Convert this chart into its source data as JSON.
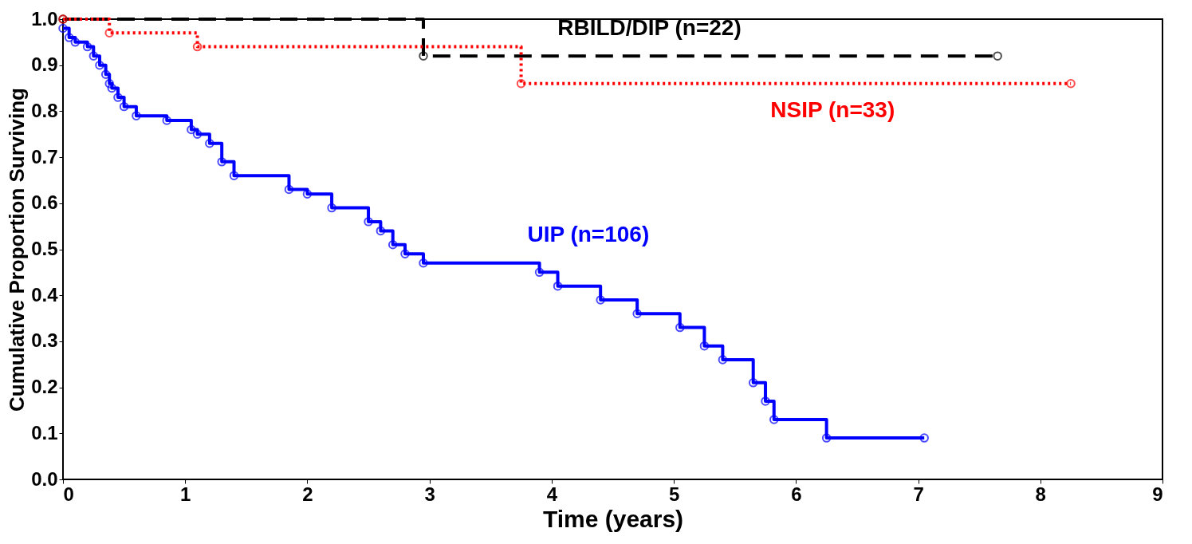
{
  "chart_data": {
    "type": "step",
    "xlabel": "Time (years)",
    "ylabel": "Cumulative Proportion Surviving",
    "xlim": [
      0,
      9
    ],
    "xticks": [
      0,
      1,
      2,
      3,
      4,
      5,
      6,
      7,
      8,
      9
    ],
    "ylim": [
      0,
      1
    ],
    "yticks": [
      {
        "value": 0,
        "label": "0.0"
      },
      0.1,
      0.2,
      0.3,
      0.4,
      0.5,
      0.6,
      0.7,
      0.8,
      0.9,
      {
        "value": 1,
        "label": "1.0"
      }
    ],
    "grid": false,
    "marker": "circle",
    "series": [
      {
        "name": "RBILD/DIP (n=22)",
        "color": "#000000",
        "line_style": "dashed",
        "x": [
          0,
          2.95,
          7.65
        ],
        "values": [
          1.0,
          0.92,
          0.92
        ]
      },
      {
        "name": "NSIP (n=33)",
        "color": "#ff0000",
        "line_style": "dotted",
        "x": [
          0,
          0.38,
          1.1,
          3.75,
          8.25
        ],
        "values": [
          1.0,
          0.97,
          0.94,
          0.86,
          0.86
        ]
      },
      {
        "name": "UIP (n=106)",
        "color": "#0000ff",
        "line_style": "solid",
        "x": [
          0,
          0.05,
          0.1,
          0.2,
          0.25,
          0.3,
          0.35,
          0.38,
          0.4,
          0.45,
          0.5,
          0.6,
          0.85,
          1.05,
          1.1,
          1.2,
          1.3,
          1.4,
          1.85,
          2.0,
          2.2,
          2.5,
          2.6,
          2.7,
          2.8,
          2.95,
          3.9,
          4.05,
          4.4,
          4.7,
          5.05,
          5.25,
          5.4,
          5.65,
          5.75,
          5.82,
          6.25,
          7.05
        ],
        "values": [
          0.98,
          0.96,
          0.95,
          0.94,
          0.92,
          0.9,
          0.88,
          0.86,
          0.85,
          0.83,
          0.81,
          0.79,
          0.78,
          0.76,
          0.75,
          0.73,
          0.69,
          0.66,
          0.63,
          0.62,
          0.59,
          0.56,
          0.54,
          0.51,
          0.49,
          0.47,
          0.45,
          0.42,
          0.39,
          0.36,
          0.33,
          0.29,
          0.26,
          0.21,
          0.17,
          0.13,
          0.09,
          0.09
        ]
      }
    ]
  }
}
